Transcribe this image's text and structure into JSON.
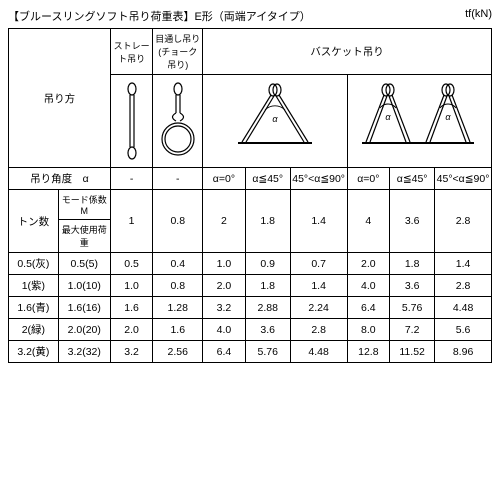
{
  "title": "【ブルースリングソフト吊り荷重表】E形（両端アイタイプ）",
  "unit": "tf(kN)",
  "headers": {
    "lifting_method": "吊り方",
    "straight": "ストレート吊り",
    "choker": "目通し吊り(チョーク吊り)",
    "basket": "バスケット吊り",
    "angle_label": "吊り角度　α",
    "dash": "-",
    "a0": "α=0°",
    "a45": "α≦45°",
    "a90": "45°<α≦90°",
    "tons": "トン数",
    "mode_coef": "モード係数M",
    "max_load": "最大使用荷重"
  },
  "mode_row": [
    "1",
    "0.8",
    "2",
    "1.8",
    "1.4",
    "4",
    "3.6",
    "2.8"
  ],
  "rows": [
    {
      "ton": "0.5(灰)",
      "load": "0.5(5)",
      "v": [
        "0.5",
        "0.4",
        "1.0",
        "0.9",
        "0.7",
        "2.0",
        "1.8",
        "1.4"
      ]
    },
    {
      "ton": "1(紫)",
      "load": "1.0(10)",
      "v": [
        "1.0",
        "0.8",
        "2.0",
        "1.8",
        "1.4",
        "4.0",
        "3.6",
        "2.8"
      ]
    },
    {
      "ton": "1.6(青)",
      "load": "1.6(16)",
      "v": [
        "1.6",
        "1.28",
        "3.2",
        "2.88",
        "2.24",
        "6.4",
        "5.76",
        "4.48"
      ]
    },
    {
      "ton": "2(緑)",
      "load": "2.0(20)",
      "v": [
        "2.0",
        "1.6",
        "4.0",
        "3.6",
        "2.8",
        "8.0",
        "7.2",
        "5.6"
      ]
    },
    {
      "ton": "3.2(黄)",
      "load": "3.2(32)",
      "v": [
        "3.2",
        "2.56",
        "6.4",
        "5.76",
        "4.48",
        "12.8",
        "11.52",
        "8.96"
      ]
    }
  ],
  "style": {
    "stroke": "#000",
    "stroke_width": 1.2,
    "alpha_font": "9"
  }
}
